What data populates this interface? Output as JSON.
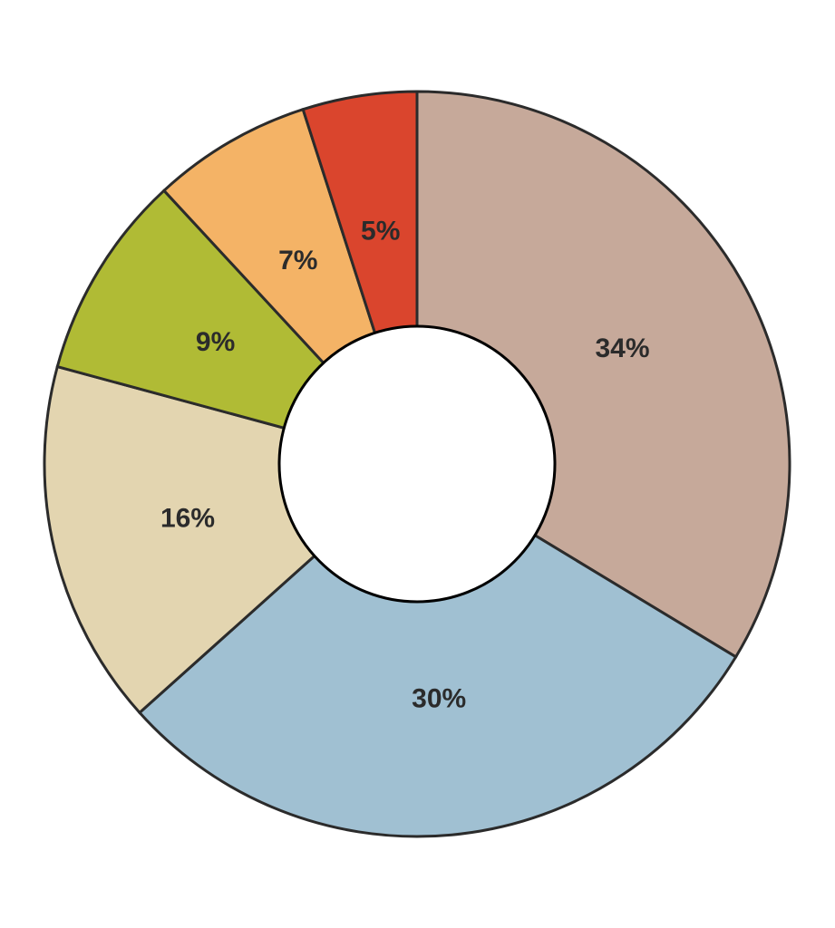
{
  "chart_data": {
    "type": "pie",
    "variant": "donut",
    "title": "",
    "legend": "none",
    "start": "12 o'clock",
    "direction": "clockwise",
    "slices": [
      {
        "label": "34%",
        "value": 34,
        "color": "#c6a99a"
      },
      {
        "label": "30%",
        "value": 30,
        "color": "#a0c0d2"
      },
      {
        "label": "16%",
        "value": 16,
        "color": "#e3d5b0"
      },
      {
        "label": "9%",
        "value": 9,
        "color": "#b0bb35"
      },
      {
        "label": "7%",
        "value": 7,
        "color": "#f4b366"
      },
      {
        "label": "5%",
        "value": 5,
        "color": "#da452d"
      }
    ]
  }
}
